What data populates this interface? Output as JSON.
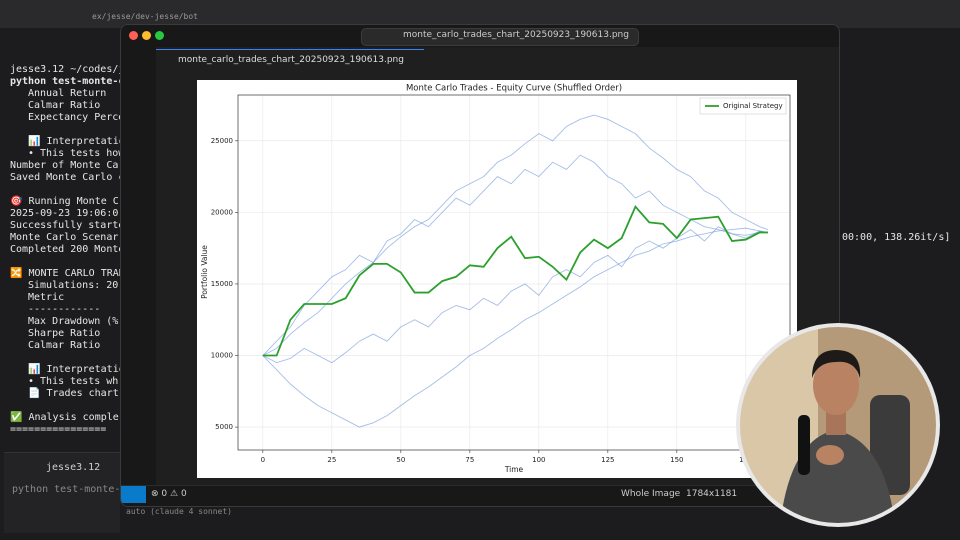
{
  "top_bar": {
    "path": "ex/jesse/dev-jesse/bot"
  },
  "terminal": {
    "lines": [
      "jesse3.12 ~/codes/je",
      "python test-monte-c",
      "Annual Return",
      "Calmar Ratio",
      "Expectancy Perce",
      "📊 Interpretatio",
      "• This tests how",
      "Number of Monte Ca",
      "Saved Monte Carlo c",
      "🎯 Running Monte C",
      "2025-09-23 19:06:0",
      "Successfully starte",
      "Monte Carlo Scenar",
      "Completed 200 Monte",
      "🔀 MONTE CARLO TRADE",
      "Simulations: 20",
      "Metric",
      "------------",
      "Max Drawdown (%",
      "Sharpe Ratio",
      "Calmar Ratio",
      "📊 Interpretatio",
      "• This tests wh",
      "📄 Trades chart",
      "✅ Analysis comple",
      "================"
    ],
    "progress": "00:00, 138.26it/s]",
    "prompt": "jesse3.12",
    "input": "python test-monte-",
    "model": "auto (claude 4 sonnet)"
  },
  "editor": {
    "search": "monte_carlo_trades_chart_20250923_190613.png",
    "tab": "monte_carlo_trades_chart_20250923_190613.png",
    "status": {
      "errors": 0,
      "warnings": 0,
      "view": "Whole Image",
      "size": "1784x1181"
    }
  },
  "chart_data": {
    "type": "line",
    "title": "Monte Carlo Trades - Equity Curve (Shuffled Order)",
    "x_label": "Time",
    "y_label": "Portfolio Value",
    "x": [
      0,
      5,
      10,
      15,
      20,
      25,
      30,
      35,
      40,
      45,
      50,
      55,
      60,
      65,
      70,
      75,
      80,
      85,
      90,
      95,
      100,
      105,
      110,
      115,
      120,
      125,
      130,
      135,
      140,
      145,
      150,
      155,
      160,
      165,
      170,
      175,
      180,
      183
    ],
    "series": [
      {
        "color": "#5b86d9",
        "values": [
          10000,
          10500,
          11500,
          12300,
          13000,
          14000,
          15000,
          15800,
          16500,
          17500,
          18300,
          19000,
          19500,
          20500,
          21500,
          22000,
          22500,
          23500,
          24000,
          24800,
          25500,
          25000,
          26000,
          26500,
          26800,
          26500,
          26000,
          25500,
          24500,
          23800,
          23000,
          22500,
          21500,
          21000,
          20000,
          19500,
          19000,
          18800
        ]
      },
      {
        "color": "#5b86d9",
        "values": [
          10000,
          9000,
          8000,
          7200,
          6500,
          6000,
          5500,
          5000,
          5300,
          5800,
          6500,
          7200,
          7800,
          8500,
          9200,
          10000,
          10500,
          11200,
          11800,
          12500,
          13000,
          13600,
          14200,
          14800,
          15500,
          16000,
          16500,
          17000,
          17300,
          17800,
          18000,
          18300,
          18500,
          18700,
          18800,
          18900,
          18700,
          18600
        ]
      },
      {
        "color": "#5b86d9",
        "values": [
          10000,
          9500,
          9800,
          10500,
          10000,
          9500,
          10200,
          11000,
          11500,
          11000,
          12000,
          12500,
          12000,
          13000,
          13500,
          13200,
          14000,
          13500,
          14500,
          15000,
          14200,
          15500,
          16000,
          15500,
          16500,
          17000,
          16200,
          17500,
          18000,
          17500,
          18200,
          18800,
          18000,
          19000,
          18500,
          18200,
          18700,
          18600
        ]
      },
      {
        "color": "#5b86d9",
        "values": [
          10000,
          11000,
          12000,
          13500,
          14500,
          15500,
          16000,
          17000,
          16500,
          18000,
          18500,
          19500,
          19000,
          20000,
          21000,
          20500,
          21500,
          22500,
          22000,
          23000,
          22500,
          23500,
          23000,
          24000,
          23500,
          22500,
          22000,
          21000,
          21500,
          20500,
          20000,
          19500,
          19000,
          18800,
          18500,
          18400,
          18600,
          18600
        ]
      },
      {
        "name": "Original Strategy",
        "color": "#2ca02c",
        "values": [
          10000,
          10000,
          12500,
          13600,
          13600,
          13600,
          14000,
          15600,
          16400,
          16400,
          15800,
          14400,
          14400,
          15200,
          15500,
          16300,
          16200,
          17500,
          18300,
          16800,
          16900,
          16200,
          15300,
          17200,
          18100,
          17500,
          18200,
          20400,
          19300,
          19200,
          18200,
          19500,
          19600,
          19700,
          18000,
          18100,
          18600,
          18600
        ]
      }
    ],
    "xlim": [
      -9,
      191
    ],
    "xticks": [
      0,
      25,
      50,
      75,
      100,
      125,
      150,
      175
    ],
    "ylim": [
      3400,
      28200
    ],
    "yticks": [
      5000,
      10000,
      15000,
      20000,
      25000
    ],
    "grid": true,
    "legend": "upper right"
  }
}
